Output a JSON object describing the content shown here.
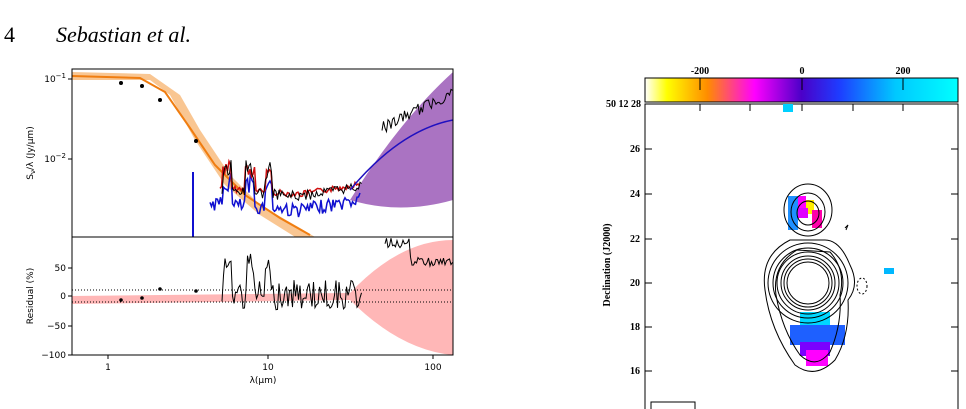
{
  "header": {
    "page_number": "4",
    "authors": "Sebastian et al."
  },
  "figure_left": {
    "top_panel": {
      "y_label": {
        "symbol": "S",
        "subscript": "ν",
        "rest": "/λ (Jy/μm)"
      },
      "y_ticks": [
        {
          "base": "10",
          "exponent": "−1"
        },
        {
          "base": "10",
          "exponent": "−2"
        }
      ]
    },
    "bottom_panel": {
      "y_label": "Residual (%)",
      "y_ticks": [
        "50",
        "0",
        "−50",
        "−100"
      ]
    },
    "x_ticks": [
      "1",
      "10",
      "100"
    ],
    "x_label": "λ(μm)"
  },
  "figure_right": {
    "colorbar_ticks": [
      "-200",
      "0",
      "200"
    ],
    "ra_label": "50 12 28",
    "dec_ticks": [
      "26",
      "24",
      "22",
      "20",
      "18",
      "16"
    ],
    "y_label": "Declination (J2000)"
  }
}
